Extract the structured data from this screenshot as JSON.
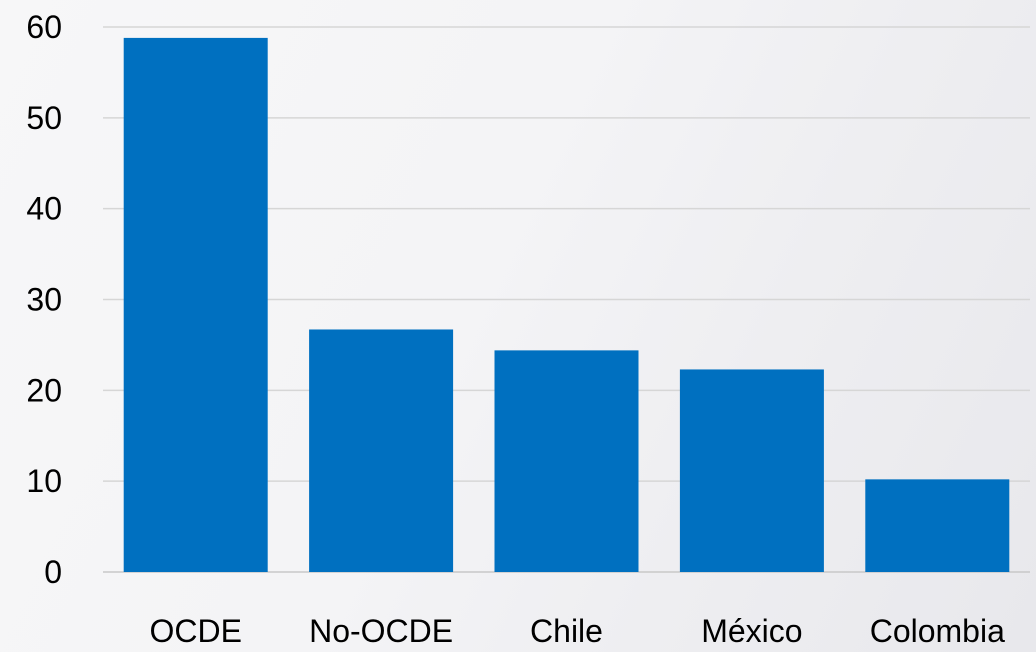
{
  "chart_data": {
    "type": "bar",
    "categories": [
      "OCDE",
      "No-OCDE",
      "Chile",
      "México",
      "Colombia"
    ],
    "values": [
      58.8,
      26.7,
      24.4,
      22.3,
      10.2
    ],
    "title": "",
    "xlabel": "",
    "ylabel": "",
    "ylim": [
      0,
      60
    ],
    "yticks": [
      "0",
      "10",
      "20",
      "30",
      "40",
      "50",
      "60"
    ],
    "grid": true,
    "legend": "none",
    "bar_color": "#0070c0"
  }
}
